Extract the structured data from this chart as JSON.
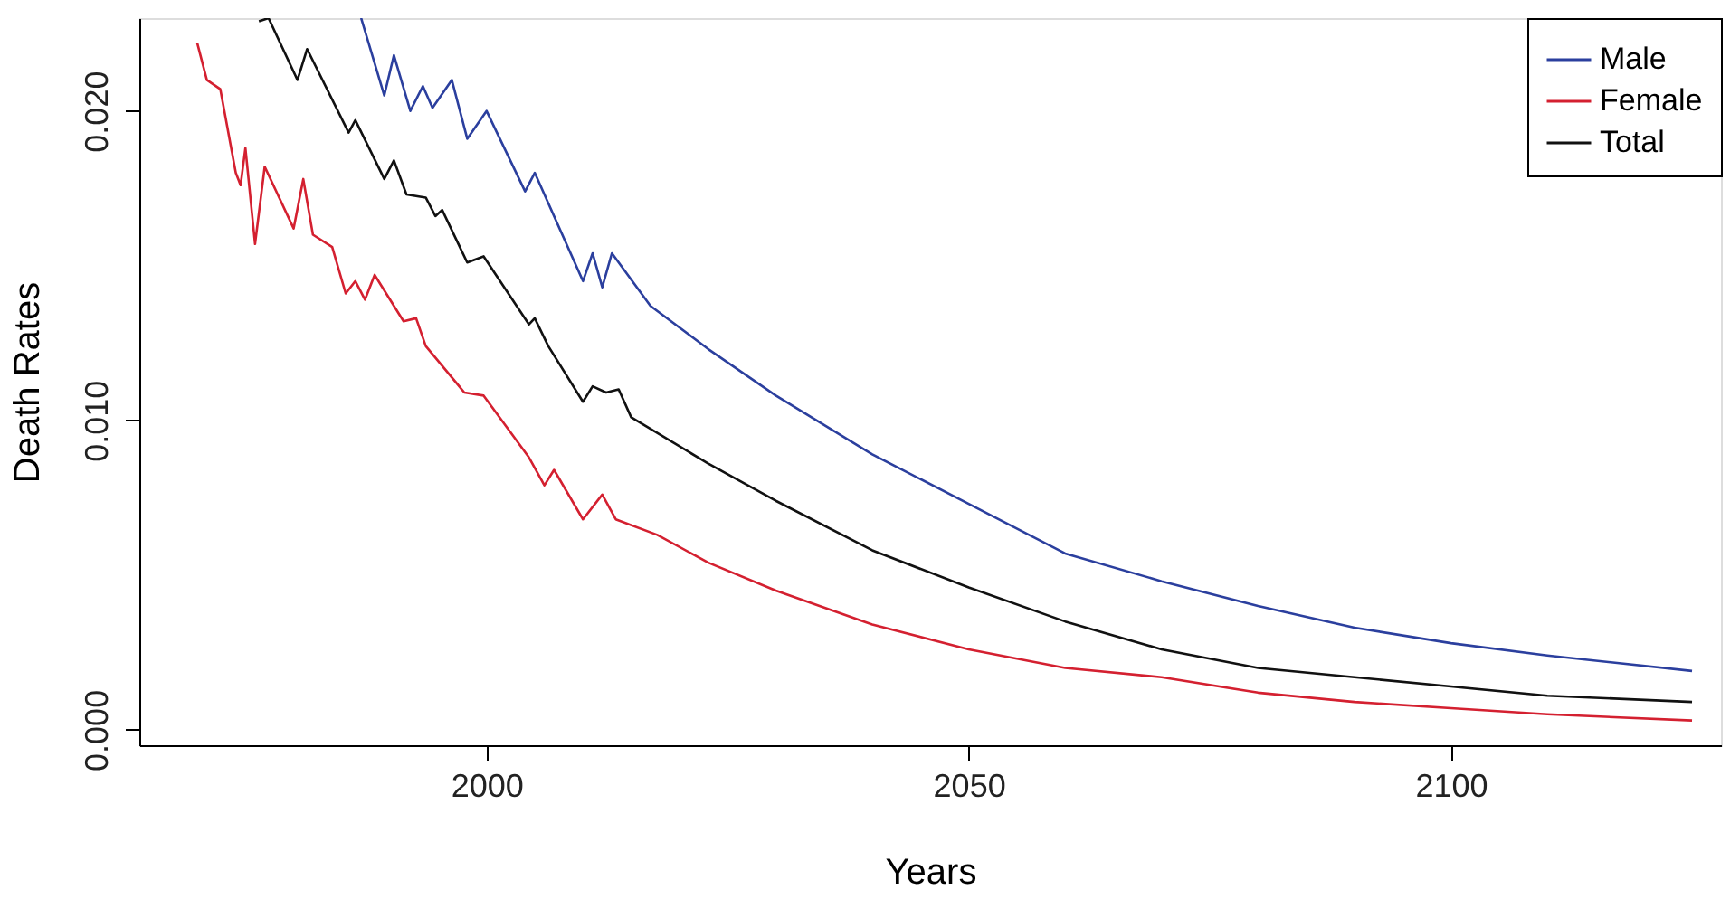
{
  "chart_data": {
    "type": "line",
    "xlabel": "Years",
    "ylabel": "Death Rates",
    "xlim": [
      1964,
      2128
    ],
    "ylim": [
      -0.0005,
      0.023
    ],
    "xticks": [
      2000,
      2050,
      2100
    ],
    "yticks": [
      {
        "value": 0,
        "label": "0.000"
      },
      {
        "value": 0.01,
        "label": "0.010"
      },
      {
        "value": 0.02,
        "label": "0.020"
      }
    ],
    "grid": false,
    "legend": "top right",
    "line_style": "solid",
    "marker": "none",
    "series": [
      {
        "name": "Male",
        "color": "#2b3f9e",
        "x": [
          1987,
          1989.4,
          1990.4,
          1992.1,
          1993.4,
          1994.4,
          1996.4,
          1998,
          2000,
          2004,
          2005,
          2010,
          2011,
          2012,
          2013,
          2017,
          2023,
          2030,
          2040,
          2050,
          2060,
          2070,
          2080,
          2090,
          2100,
          2110,
          2125
        ],
        "values": [
          0.023,
          0.0205,
          0.0218,
          0.02,
          0.0208,
          0.0201,
          0.021,
          0.0191,
          0.02,
          0.0174,
          0.018,
          0.0145,
          0.0154,
          0.0143,
          0.0154,
          0.0137,
          0.0123,
          0.0108,
          0.0089,
          0.0073,
          0.0057,
          0.0048,
          0.004,
          0.0033,
          0.0028,
          0.0024,
          0.0019
        ]
      },
      {
        "name": "Female",
        "color": "#d42030",
        "x": [
          1970,
          1971,
          1972.4,
          1974,
          1974.5,
          1975,
          1976,
          1977,
          1980,
          1981,
          1982,
          1984,
          1985.4,
          1986.4,
          1987.4,
          1988.4,
          1991.4,
          1992.7,
          1993.7,
          1997.7,
          1999.7,
          2004.4,
          2006,
          2007,
          2010,
          2012,
          2013.4,
          2017.7,
          2023,
          2030,
          2040,
          2050,
          2060,
          2070,
          2080,
          2090,
          2100,
          2110,
          2125
        ],
        "values": [
          0.0222,
          0.021,
          0.0207,
          0.018,
          0.0176,
          0.0188,
          0.0157,
          0.0182,
          0.0162,
          0.0178,
          0.016,
          0.0156,
          0.0141,
          0.0145,
          0.0139,
          0.0147,
          0.0132,
          0.0133,
          0.0124,
          0.0109,
          0.0108,
          0.0088,
          0.0079,
          0.0084,
          0.0068,
          0.0076,
          0.0068,
          0.0063,
          0.0054,
          0.0045,
          0.0034,
          0.0026,
          0.002,
          0.0017,
          0.0012,
          0.0009,
          0.0007,
          0.0005,
          0.0003
        ]
      },
      {
        "name": "Total",
        "color": "#111111",
        "x": [
          1976.4,
          1977.4,
          1980.4,
          1981.4,
          1985.7,
          1986.4,
          1989.4,
          1990.4,
          1991.7,
          1993.7,
          1994.7,
          1995.4,
          1998,
          1999.7,
          2004.4,
          2005,
          2006.4,
          2010,
          2011,
          2012.4,
          2013.7,
          2015,
          2023,
          2030,
          2040,
          2050,
          2060,
          2070,
          2080,
          2090,
          2100,
          2110,
          2125
        ],
        "values": [
          0.0229,
          0.023,
          0.021,
          0.022,
          0.0193,
          0.0197,
          0.0178,
          0.0184,
          0.0173,
          0.0172,
          0.0166,
          0.0168,
          0.0151,
          0.0153,
          0.0131,
          0.0133,
          0.0124,
          0.0106,
          0.0111,
          0.0109,
          0.011,
          0.0101,
          0.0086,
          0.0074,
          0.0058,
          0.0046,
          0.0035,
          0.0026,
          0.002,
          0.0017,
          0.0014,
          0.0011,
          0.0009
        ]
      }
    ]
  }
}
